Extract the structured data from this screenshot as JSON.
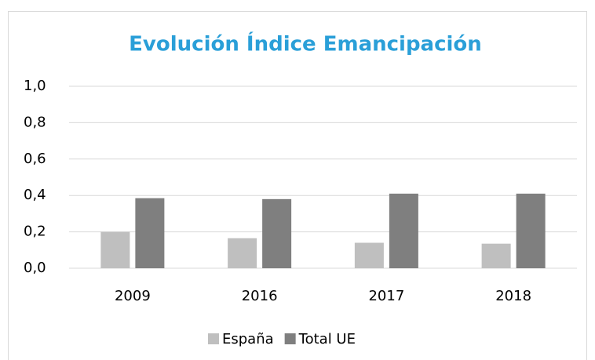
{
  "chart_data": {
    "type": "bar",
    "title": "Evolución Índice Emancipación",
    "categories": [
      "2009",
      "2016",
      "2017",
      "2018"
    ],
    "series": [
      {
        "name": "España",
        "color": "#bfbfbf",
        "values": [
          0.2,
          0.165,
          0.14,
          0.135
        ]
      },
      {
        "name": "Total UE",
        "color": "#7f7f7f",
        "values": [
          0.385,
          0.38,
          0.41,
          0.41
        ]
      }
    ],
    "ylim": [
      0,
      1
    ],
    "yticks": [
      {
        "value": 0,
        "label": "0,0"
      },
      {
        "value": 0.2,
        "label": "0,2"
      },
      {
        "value": 0.4,
        "label": "0,4"
      },
      {
        "value": 0.6,
        "label": "0,6"
      },
      {
        "value": 0.8,
        "label": "0,8"
      },
      {
        "value": 1,
        "label": "1,0"
      }
    ],
    "grid": true,
    "legend": "bottom"
  }
}
